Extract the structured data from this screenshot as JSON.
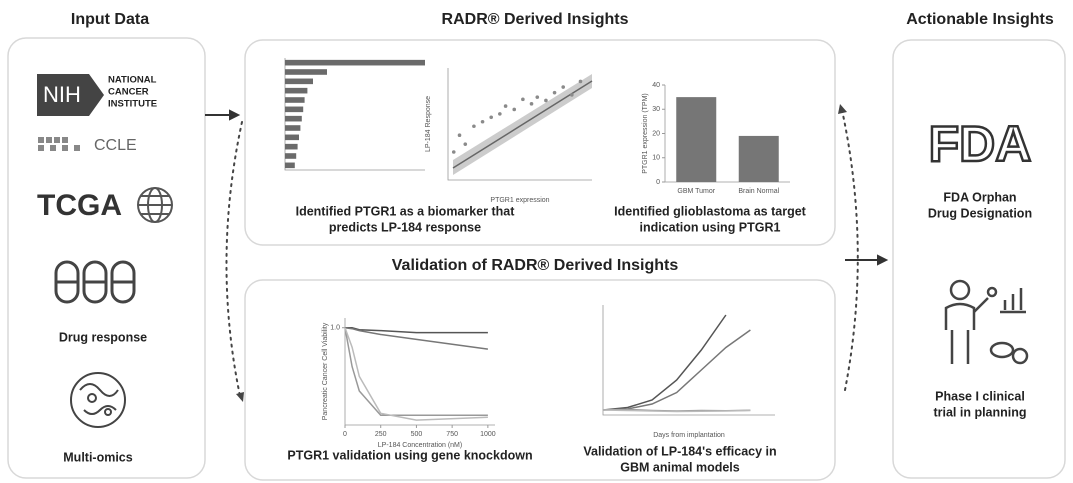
{
  "panels": {
    "input": {
      "title": "Input Data",
      "nih": {
        "logo": "NIH",
        "name": [
          "NATIONAL",
          "CANCER",
          "INSTITUTE"
        ]
      },
      "ccle": "CCLE",
      "tcga": "TCGA",
      "drug": "Drug response",
      "omics": "Multi-omics"
    },
    "radr": {
      "title": "RADR® Derived Insights",
      "caption_left": [
        "Identified PTGR1 as a biomarker that",
        "predicts LP-184 response"
      ],
      "caption_right": [
        "Identified glioblastoma as target",
        "indication using PTGR1"
      ]
    },
    "validation": {
      "title": "Validation of RADR® Derived Insights",
      "caption_left": [
        "PTGR1 validation using gene knockdown"
      ],
      "caption_right": [
        "Validation of LP-184's efficacy in",
        "GBM animal models"
      ]
    },
    "actionable": {
      "title": "Actionable Insights",
      "fda": "FDA",
      "fda_caption": [
        "FDA Orphan",
        "Drug Designation"
      ],
      "trial_caption": [
        "Phase I clinical",
        "trial in planning"
      ]
    }
  },
  "charts": {
    "biomarkers": {
      "type": "hbar",
      "values": [
        100,
        30,
        20,
        16,
        14,
        13,
        12,
        11,
        10,
        9,
        8,
        7
      ],
      "xlim": [
        0,
        100
      ],
      "color": "#6a6a6a"
    },
    "correlation": {
      "type": "scatter",
      "x_label": "PTGR1 expression",
      "y_label": "LP-184 Response",
      "x": [
        0.2,
        0.4,
        0.6,
        0.9,
        1.2,
        1.5,
        1.8,
        2.0,
        2.3,
        2.6,
        2.9,
        3.1,
        3.4,
        3.7,
        4.0,
        4.3,
        4.6
      ],
      "y": [
        2.5,
        4.0,
        3.2,
        4.8,
        5.2,
        5.6,
        5.9,
        6.6,
        6.3,
        7.2,
        6.8,
        7.4,
        7.1,
        7.8,
        8.3,
        7.6,
        8.8
      ],
      "xlim": [
        0,
        5
      ],
      "ylim": [
        0,
        10
      ],
      "color": "#8a8a8a"
    },
    "expression": {
      "type": "bar",
      "y_label": "PTGR1 expression (TPM)",
      "categories": [
        "GBM Tumor",
        "Brain Normal"
      ],
      "values": [
        35,
        19
      ],
      "ylim": [
        0,
        40
      ],
      "yticks": [
        0,
        10,
        20,
        30,
        40
      ],
      "color": "#767676"
    },
    "knockdown": {
      "type": "line",
      "x_label": "LP-184 Concentration (nM)",
      "y_label": "Pancreatic Cancer Cell Viability",
      "x": [
        0,
        50,
        100,
        250,
        500,
        1000
      ],
      "series": [
        {
          "color": "#555555",
          "values": [
            1,
            1,
            0.98,
            0.97,
            0.95,
            0.95
          ]
        },
        {
          "color": "#777777",
          "values": [
            1,
            0.99,
            0.97,
            0.93,
            0.88,
            0.78
          ]
        },
        {
          "color": "#999999",
          "values": [
            1,
            0.6,
            0.35,
            0.1,
            0.1,
            0.1
          ]
        },
        {
          "color": "#bbbbbb",
          "values": [
            1,
            0.8,
            0.5,
            0.12,
            0.05,
            0.08
          ]
        }
      ],
      "xlim": [
        0,
        1050
      ],
      "xticks": [
        0,
        250,
        500,
        750,
        1000
      ],
      "ylim": [
        0,
        1.1
      ],
      "yticks": [
        {
          "value": 1,
          "label": "1.0"
        }
      ]
    },
    "tumor": {
      "type": "line",
      "x_label": "Days from implantation",
      "x": [
        0,
        10,
        20,
        30,
        40,
        50,
        60
      ],
      "series": [
        {
          "color": "#555555",
          "values": [
            100,
            150,
            300,
            700,
            1300,
            2000,
            null
          ]
        },
        {
          "color": "#777777",
          "values": [
            100,
            120,
            220,
            450,
            900,
            1350,
            1700
          ]
        },
        {
          "color": "#999999",
          "values": [
            100,
            110,
            90,
            80,
            90,
            85,
            95
          ]
        },
        {
          "color": "#bbbbbb",
          "values": [
            100,
            90,
            80,
            70,
            75,
            80,
            90
          ]
        }
      ],
      "xlim": [
        0,
        70
      ],
      "ylim": [
        0,
        2200
      ]
    }
  }
}
